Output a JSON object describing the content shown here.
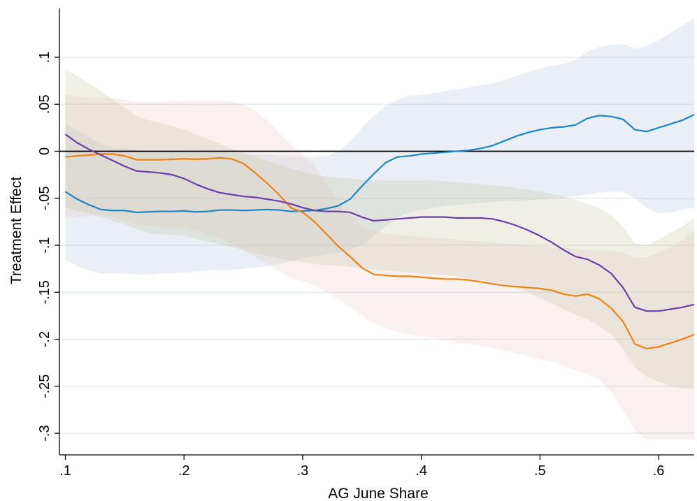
{
  "chart_data": {
    "type": "line",
    "title": "",
    "xlabel": "AG June Share",
    "ylabel": "Treatment Effect",
    "xlim": [
      0.095,
      0.63
    ],
    "ylim": [
      -0.323,
      0.152
    ],
    "x_ticks": [
      0.1,
      0.2,
      0.3,
      0.4,
      0.5,
      0.6
    ],
    "x_tick_labels": [
      ".1",
      ".2",
      ".3",
      ".4",
      ".5",
      ".6"
    ],
    "y_ticks": [
      0.1,
      0.05,
      0,
      -0.05,
      -0.1,
      -0.15,
      -0.2,
      -0.25,
      -0.3
    ],
    "y_tick_labels": [
      ".1",
      ".05",
      "0",
      "-.05",
      "-.1",
      "-.15",
      "-.2",
      "-.25",
      "-.3"
    ],
    "grid": true,
    "zero_line": true,
    "legend": "none",
    "colors": {
      "blue": "#1a86c8",
      "orange": "#f0820f",
      "purple": "#6a3fa8",
      "blue_band": "rgba(176,196,216,0.28)",
      "orange_band": "rgba(226,188,188,0.22)",
      "purple_band": "rgba(192,192,160,0.26)",
      "grid": "#e3ecef"
    },
    "x": [
      0.1,
      0.11,
      0.12,
      0.13,
      0.14,
      0.15,
      0.16,
      0.17,
      0.18,
      0.19,
      0.2,
      0.21,
      0.22,
      0.23,
      0.24,
      0.25,
      0.26,
      0.27,
      0.28,
      0.29,
      0.3,
      0.31,
      0.32,
      0.33,
      0.34,
      0.35,
      0.36,
      0.37,
      0.38,
      0.39,
      0.4,
      0.41,
      0.42,
      0.43,
      0.44,
      0.45,
      0.46,
      0.47,
      0.48,
      0.49,
      0.5,
      0.51,
      0.52,
      0.53,
      0.54,
      0.55,
      0.56,
      0.57,
      0.58,
      0.59,
      0.6,
      0.61,
      0.62,
      0.63
    ],
    "series": [
      {
        "color": "blue",
        "values": [
          -0.043,
          -0.051,
          -0.057,
          -0.062,
          -0.063,
          -0.063,
          -0.065,
          -0.0645,
          -0.064,
          -0.064,
          -0.0635,
          -0.0645,
          -0.064,
          -0.0625,
          -0.0625,
          -0.063,
          -0.0625,
          -0.062,
          -0.0625,
          -0.064,
          -0.0635,
          -0.063,
          -0.061,
          -0.058,
          -0.051,
          -0.037,
          -0.024,
          -0.012,
          -0.006,
          -0.005,
          -0.003,
          -0.002,
          -0.001,
          0.0,
          0.001,
          0.003,
          0.006,
          0.011,
          0.016,
          0.02,
          0.023,
          0.025,
          0.026,
          0.028,
          0.035,
          0.038,
          0.037,
          0.034,
          0.023,
          0.021,
          0.025,
          0.029,
          0.033,
          0.039
        ],
        "lower": [
          -0.115,
          -0.122,
          -0.127,
          -0.13,
          -0.13,
          -0.13,
          -0.131,
          -0.131,
          -0.13,
          -0.13,
          -0.129,
          -0.128,
          -0.127,
          -0.126,
          -0.126,
          -0.125,
          -0.124,
          -0.122,
          -0.12,
          -0.117,
          -0.114,
          -0.112,
          -0.11,
          -0.108,
          -0.105,
          -0.1,
          -0.09,
          -0.08,
          -0.07,
          -0.065,
          -0.062,
          -0.06,
          -0.058,
          -0.057,
          -0.056,
          -0.055,
          -0.054,
          -0.053,
          -0.053,
          -0.052,
          -0.051,
          -0.05,
          -0.049,
          -0.048,
          -0.046,
          -0.044,
          -0.043,
          -0.043,
          -0.05,
          -0.06,
          -0.066,
          -0.065,
          -0.062,
          -0.06
        ],
        "upper": [
          0.03,
          0.022,
          0.015,
          0.007,
          0.004,
          0.003,
          0.001,
          0.0,
          0.0,
          0.0,
          -0.001,
          -0.001,
          -0.001,
          -0.001,
          -0.002,
          -0.002,
          -0.003,
          -0.003,
          -0.004,
          -0.005,
          -0.006,
          -0.006,
          -0.005,
          0.0,
          0.01,
          0.025,
          0.038,
          0.048,
          0.055,
          0.059,
          0.06,
          0.062,
          0.064,
          0.066,
          0.068,
          0.07,
          0.072,
          0.076,
          0.08,
          0.084,
          0.088,
          0.091,
          0.093,
          0.097,
          0.106,
          0.111,
          0.113,
          0.114,
          0.109,
          0.112,
          0.118,
          0.126,
          0.134,
          0.142
        ]
      },
      {
        "color": "orange",
        "values": [
          -0.006,
          -0.005,
          -0.004,
          -0.003,
          -0.003,
          -0.005,
          -0.009,
          -0.009,
          -0.009,
          -0.0085,
          -0.008,
          -0.0085,
          -0.008,
          -0.007,
          -0.008,
          -0.013,
          -0.023,
          -0.034,
          -0.046,
          -0.06,
          -0.065,
          -0.075,
          -0.088,
          -0.101,
          -0.112,
          -0.124,
          -0.131,
          -0.132,
          -0.133,
          -0.133,
          -0.134,
          -0.135,
          -0.136,
          -0.136,
          -0.137,
          -0.139,
          -0.141,
          -0.143,
          -0.144,
          -0.145,
          -0.146,
          -0.148,
          -0.152,
          -0.154,
          -0.152,
          -0.157,
          -0.167,
          -0.181,
          -0.205,
          -0.21,
          -0.208,
          -0.204,
          -0.2,
          -0.195
        ],
        "lower": [
          -0.07,
          -0.07,
          -0.069,
          -0.068,
          -0.07,
          -0.074,
          -0.078,
          -0.079,
          -0.08,
          -0.081,
          -0.082,
          -0.085,
          -0.088,
          -0.092,
          -0.098,
          -0.105,
          -0.113,
          -0.12,
          -0.128,
          -0.135,
          -0.138,
          -0.143,
          -0.15,
          -0.157,
          -0.165,
          -0.175,
          -0.183,
          -0.188,
          -0.192,
          -0.195,
          -0.197,
          -0.199,
          -0.201,
          -0.203,
          -0.205,
          -0.207,
          -0.209,
          -0.212,
          -0.215,
          -0.218,
          -0.221,
          -0.224,
          -0.228,
          -0.233,
          -0.237,
          -0.243,
          -0.256,
          -0.275,
          -0.297,
          -0.307,
          -0.307,
          -0.307,
          -0.307,
          -0.307
        ],
        "upper": [
          0.06,
          0.058,
          0.057,
          0.057,
          0.056,
          0.055,
          0.053,
          0.053,
          0.053,
          0.053,
          0.054,
          0.054,
          0.054,
          0.054,
          0.053,
          0.05,
          0.043,
          0.033,
          0.02,
          0.007,
          -0.003,
          -0.015,
          -0.035,
          -0.055,
          -0.068,
          -0.08,
          -0.085,
          -0.087,
          -0.089,
          -0.09,
          -0.091,
          -0.092,
          -0.093,
          -0.094,
          -0.095,
          -0.096,
          -0.097,
          -0.098,
          -0.099,
          -0.1,
          -0.101,
          -0.102,
          -0.103,
          -0.104,
          -0.105,
          -0.105,
          -0.106,
          -0.108,
          -0.113,
          -0.113,
          -0.108,
          -0.102,
          -0.095,
          -0.083
        ]
      },
      {
        "color": "purple",
        "values": [
          0.018,
          0.009,
          0.002,
          -0.004,
          -0.01,
          -0.016,
          -0.021,
          -0.022,
          -0.023,
          -0.025,
          -0.029,
          -0.035,
          -0.04,
          -0.044,
          -0.046,
          -0.048,
          -0.049,
          -0.051,
          -0.053,
          -0.056,
          -0.06,
          -0.063,
          -0.064,
          -0.064,
          -0.065,
          -0.07,
          -0.074,
          -0.073,
          -0.072,
          -0.071,
          -0.07,
          -0.07,
          -0.07,
          -0.071,
          -0.071,
          -0.071,
          -0.072,
          -0.075,
          -0.079,
          -0.084,
          -0.09,
          -0.097,
          -0.105,
          -0.112,
          -0.115,
          -0.121,
          -0.13,
          -0.145,
          -0.166,
          -0.17,
          -0.17,
          -0.168,
          -0.166,
          -0.163
        ],
        "lower": [
          -0.06,
          -0.063,
          -0.066,
          -0.07,
          -0.074,
          -0.078,
          -0.083,
          -0.087,
          -0.088,
          -0.089,
          -0.09,
          -0.093,
          -0.096,
          -0.099,
          -0.102,
          -0.105,
          -0.108,
          -0.111,
          -0.114,
          -0.116,
          -0.118,
          -0.12,
          -0.121,
          -0.122,
          -0.123,
          -0.124,
          -0.126,
          -0.127,
          -0.128,
          -0.129,
          -0.13,
          -0.131,
          -0.132,
          -0.133,
          -0.135,
          -0.137,
          -0.139,
          -0.142,
          -0.146,
          -0.15,
          -0.156,
          -0.162,
          -0.168,
          -0.174,
          -0.179,
          -0.186,
          -0.195,
          -0.21,
          -0.23,
          -0.24,
          -0.245,
          -0.25,
          -0.252,
          -0.253
        ],
        "upper": [
          0.087,
          0.08,
          0.072,
          0.064,
          0.055,
          0.046,
          0.038,
          0.033,
          0.03,
          0.027,
          0.023,
          0.018,
          0.013,
          0.008,
          0.003,
          -0.002,
          -0.006,
          -0.01,
          -0.014,
          -0.018,
          -0.022,
          -0.025,
          -0.027,
          -0.028,
          -0.029,
          -0.03,
          -0.031,
          -0.031,
          -0.031,
          -0.031,
          -0.031,
          -0.031,
          -0.032,
          -0.033,
          -0.034,
          -0.035,
          -0.036,
          -0.037,
          -0.039,
          -0.041,
          -0.043,
          -0.045,
          -0.048,
          -0.052,
          -0.056,
          -0.061,
          -0.068,
          -0.08,
          -0.098,
          -0.1,
          -0.094,
          -0.087,
          -0.08,
          -0.071
        ]
      }
    ]
  }
}
